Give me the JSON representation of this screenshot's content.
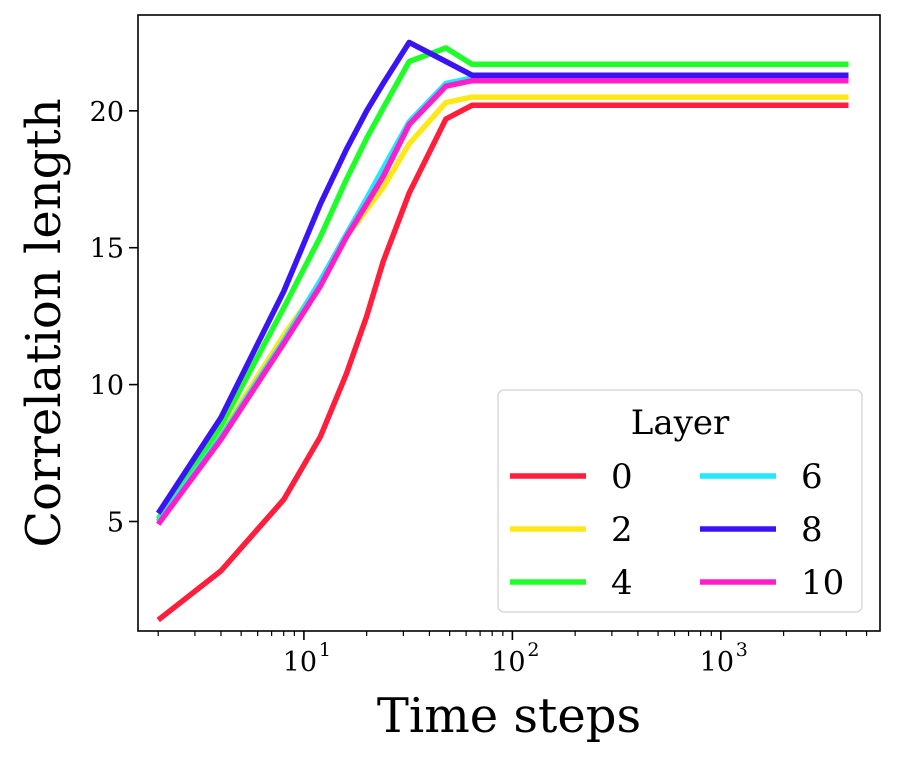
{
  "chart_data": {
    "type": "line",
    "xlabel": "Time steps",
    "ylabel": "Correlation length",
    "xscale": "log",
    "xlim": [
      1.6,
      5800
    ],
    "ylim": [
      1.0,
      23.5
    ],
    "grid": false,
    "x_ticks": [
      {
        "value": 10,
        "base": "10",
        "exp": "1"
      },
      {
        "value": 100,
        "base": "10",
        "exp": "2"
      },
      {
        "value": 1000,
        "base": "10",
        "exp": "3"
      }
    ],
    "y_ticks": [
      {
        "value": 5,
        "label": "5"
      },
      {
        "value": 10,
        "label": "10"
      },
      {
        "value": 15,
        "label": "15"
      },
      {
        "value": 20,
        "label": "20"
      }
    ],
    "legend": {
      "title": "Layer",
      "placement": "lower right",
      "columns": 2
    },
    "series": [
      {
        "name": "0",
        "color": "#ff1f3d",
        "x": [
          2,
          4,
          8,
          12,
          16,
          20,
          24,
          32,
          48,
          64,
          128,
          256,
          512,
          1024,
          2048,
          4096
        ],
        "y": [
          1.4,
          3.2,
          5.8,
          8.1,
          10.4,
          12.5,
          14.5,
          17.0,
          19.7,
          20.2,
          20.2,
          20.2,
          20.2,
          20.2,
          20.2,
          20.2
        ]
      },
      {
        "name": "2",
        "color": "#ffe81a",
        "x": [
          2,
          4,
          8,
          12,
          16,
          20,
          24,
          32,
          48,
          64,
          128,
          256,
          512,
          1024,
          2048,
          4096
        ],
        "y": [
          5.0,
          8.2,
          11.8,
          13.7,
          15.4,
          16.4,
          17.2,
          18.8,
          20.3,
          20.5,
          20.5,
          20.5,
          20.5,
          20.5,
          20.5,
          20.5
        ]
      },
      {
        "name": "4",
        "color": "#1eff2a",
        "x": [
          2,
          4,
          8,
          12,
          16,
          20,
          24,
          32,
          48,
          64,
          128,
          256,
          512,
          1024,
          2048,
          4096
        ],
        "y": [
          5.1,
          8.5,
          12.8,
          15.4,
          17.5,
          19.0,
          20.1,
          21.8,
          22.3,
          21.7,
          21.7,
          21.7,
          21.7,
          21.7,
          21.7,
          21.7
        ]
      },
      {
        "name": "6",
        "color": "#1ee9ff",
        "x": [
          2,
          4,
          8,
          12,
          16,
          20,
          24,
          32,
          48,
          64,
          128,
          256,
          512,
          1024,
          2048,
          4096
        ],
        "y": [
          5.0,
          8.1,
          11.6,
          13.8,
          15.5,
          16.8,
          17.9,
          19.6,
          21.0,
          21.2,
          21.2,
          21.2,
          21.2,
          21.2,
          21.2,
          21.2
        ]
      },
      {
        "name": "8",
        "color": "#3a14f5",
        "x": [
          2,
          4,
          8,
          12,
          16,
          20,
          24,
          32,
          48,
          64,
          128,
          256,
          512,
          1024,
          2048,
          4096
        ],
        "y": [
          5.3,
          8.8,
          13.4,
          16.6,
          18.6,
          20.0,
          21.0,
          22.5,
          21.8,
          21.3,
          21.3,
          21.3,
          21.3,
          21.3,
          21.3,
          21.3
        ]
      },
      {
        "name": "10",
        "color": "#ff1fc8",
        "x": [
          2,
          4,
          8,
          12,
          16,
          20,
          24,
          32,
          48,
          64,
          128,
          256,
          512,
          1024,
          2048,
          4096
        ],
        "y": [
          4.9,
          8.0,
          11.5,
          13.6,
          15.4,
          16.6,
          17.6,
          19.5,
          20.9,
          21.1,
          21.1,
          21.1,
          21.1,
          21.1,
          21.1,
          21.1
        ]
      }
    ]
  }
}
